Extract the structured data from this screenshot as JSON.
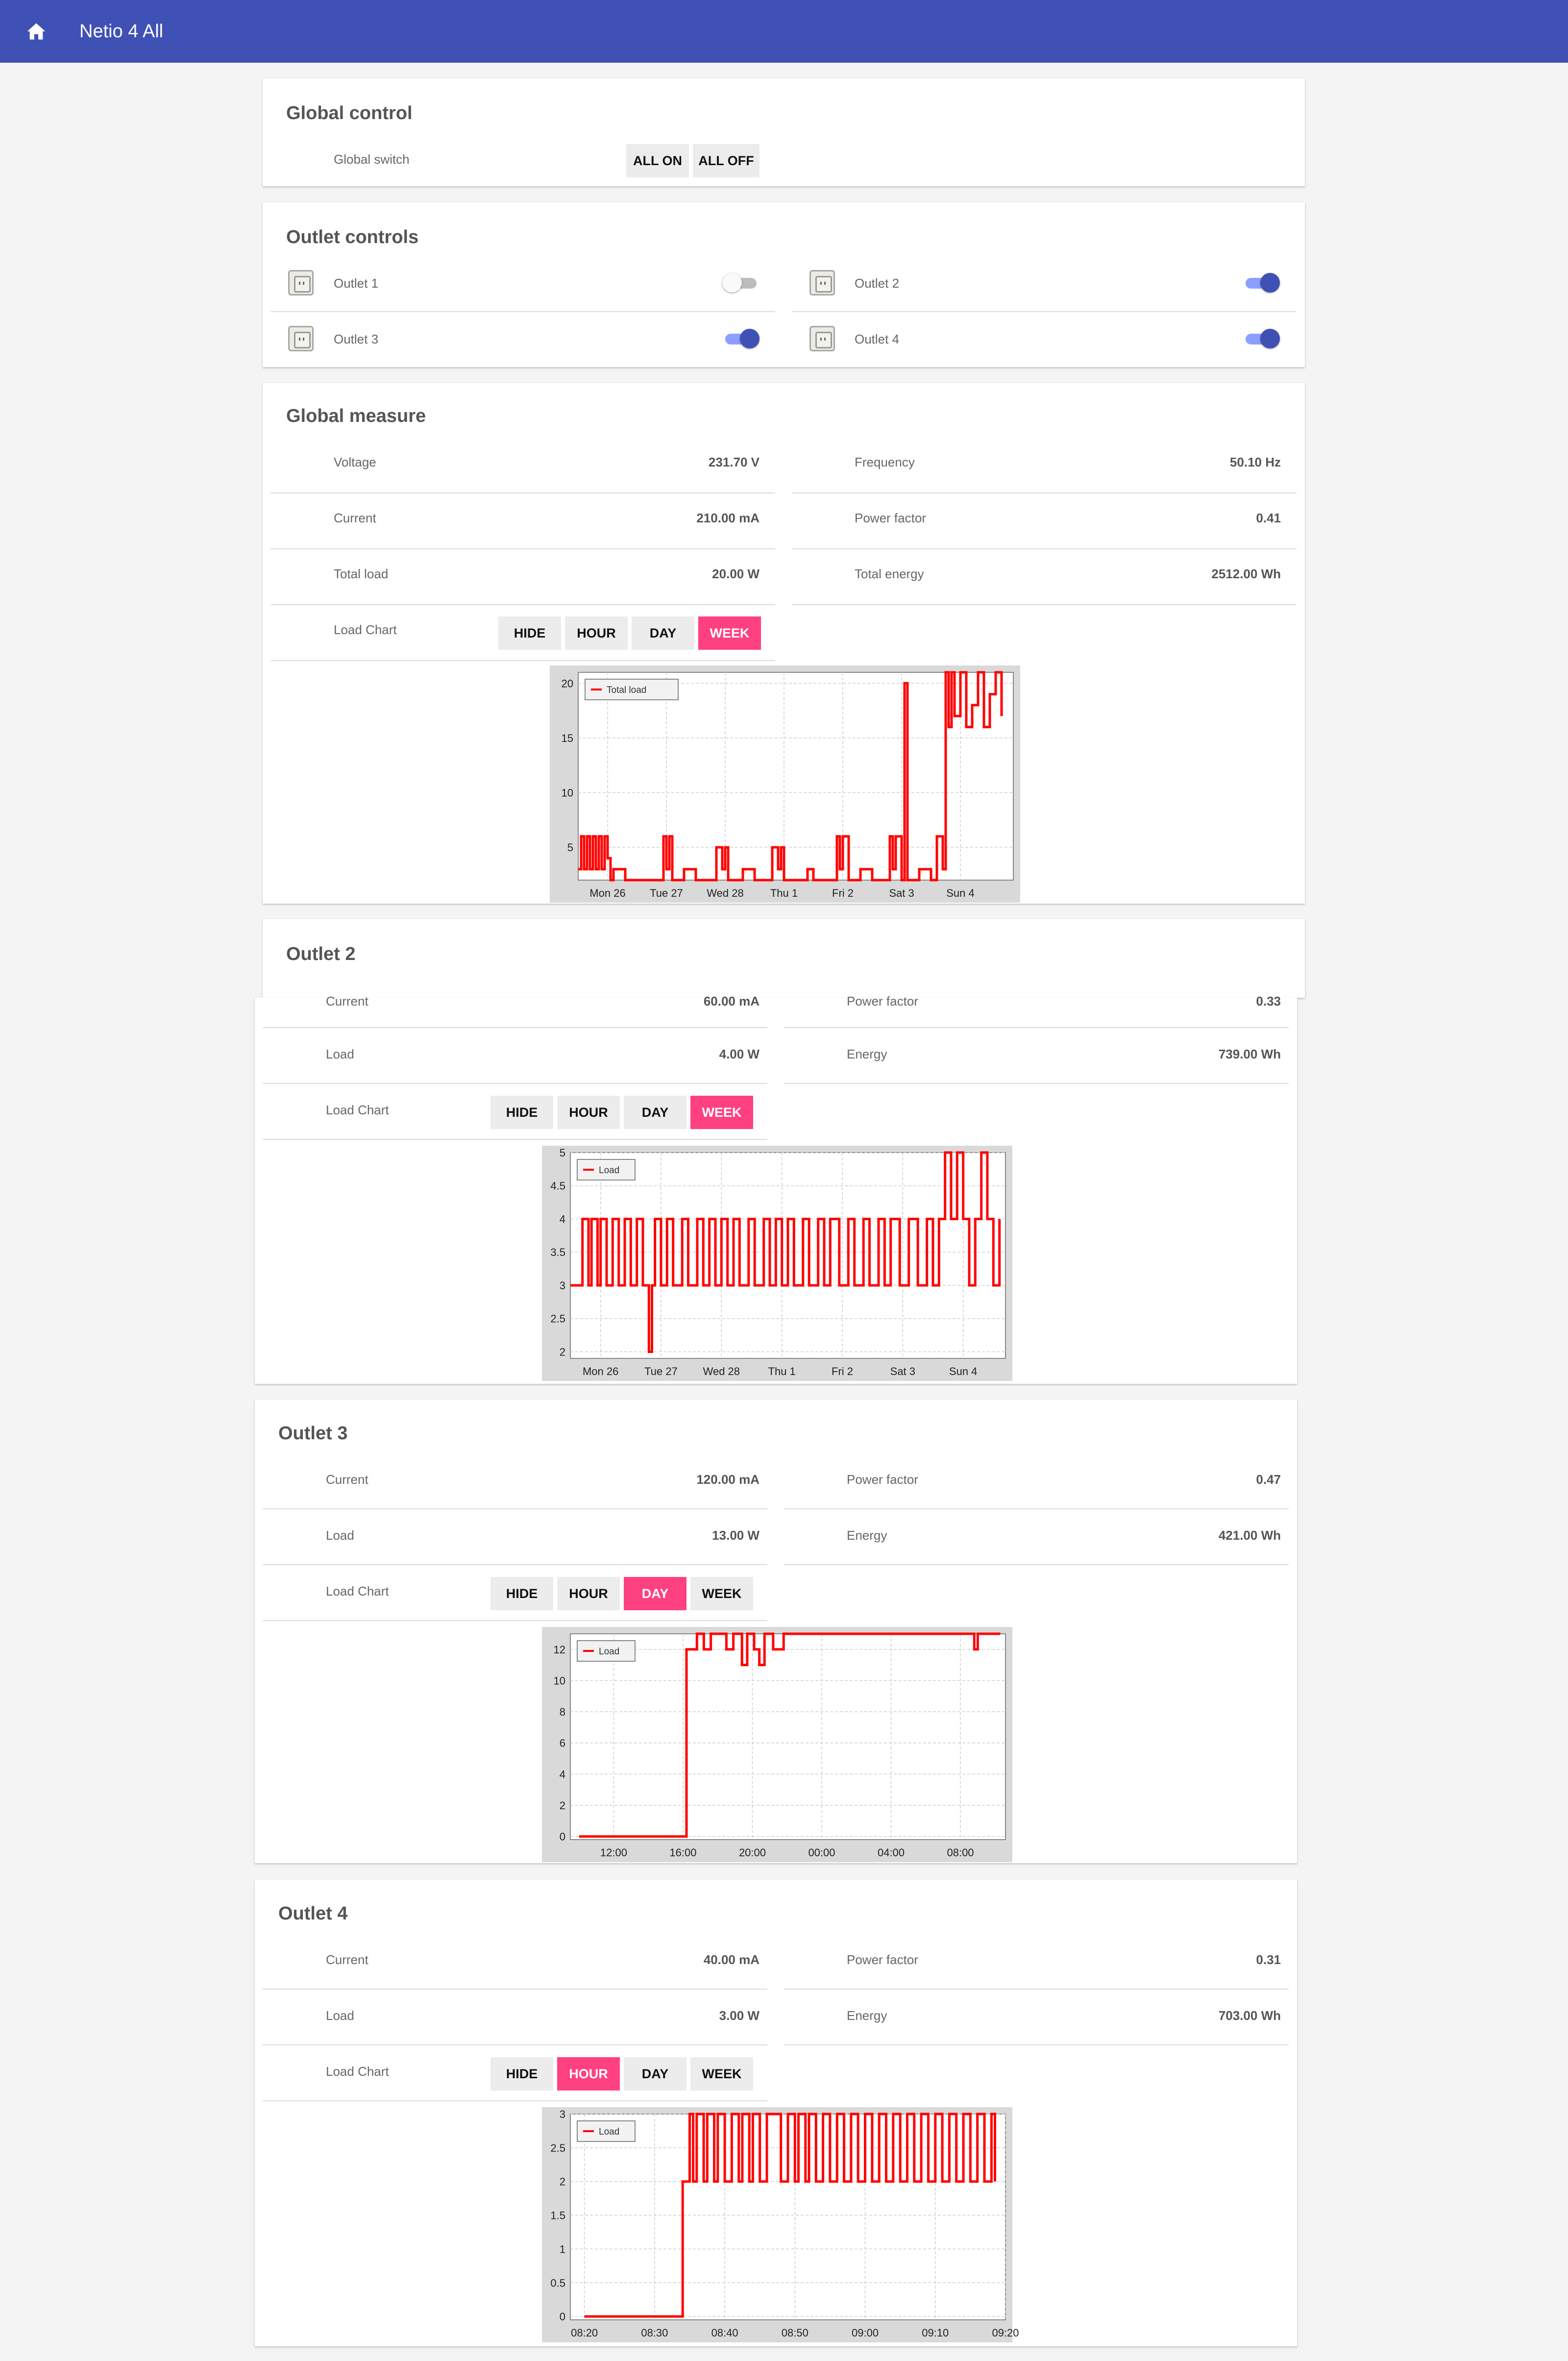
{
  "app": {
    "title": "Netio 4 All",
    "home_icon": "home-icon"
  },
  "global_control": {
    "title": "Global control",
    "switch_label": "Global switch",
    "all_on": "ALL ON",
    "all_off": "ALL OFF"
  },
  "outlet_controls": {
    "title": "Outlet controls",
    "outlets": [
      {
        "name": "Outlet 1",
        "on": false
      },
      {
        "name": "Outlet 2",
        "on": true
      },
      {
        "name": "Outlet 3",
        "on": true
      },
      {
        "name": "Outlet 4",
        "on": true
      }
    ]
  },
  "global_measure": {
    "title": "Global measure",
    "rows": [
      {
        "label": "Voltage",
        "value": "231.70 V"
      },
      {
        "label": "Frequency",
        "value": "50.10 Hz"
      },
      {
        "label": "Current",
        "value": "210.00 mA"
      },
      {
        "label": "Power factor",
        "value": "0.41"
      },
      {
        "label": "Total load",
        "value": "20.00 W"
      },
      {
        "label": "Total energy",
        "value": "2512.00 Wh"
      }
    ],
    "load_chart_label": "Load Chart",
    "buttons": [
      "HIDE",
      "HOUR",
      "DAY",
      "WEEK"
    ],
    "active_button": "WEEK"
  },
  "outlet2": {
    "title": "Outlet 2",
    "rows": [
      {
        "label": "Current",
        "value": "60.00 mA"
      },
      {
        "label": "Power factor",
        "value": "0.33"
      },
      {
        "label": "Load",
        "value": "4.00 W"
      },
      {
        "label": "Energy",
        "value": "739.00 Wh"
      }
    ],
    "load_chart_label": "Load Chart",
    "buttons": [
      "HIDE",
      "HOUR",
      "DAY",
      "WEEK"
    ],
    "active_button": "WEEK"
  },
  "outlet3": {
    "title": "Outlet 3",
    "rows": [
      {
        "label": "Current",
        "value": "120.00 mA"
      },
      {
        "label": "Power factor",
        "value": "0.47"
      },
      {
        "label": "Load",
        "value": "13.00 W"
      },
      {
        "label": "Energy",
        "value": "421.00 Wh"
      }
    ],
    "load_chart_label": "Load Chart",
    "buttons": [
      "HIDE",
      "HOUR",
      "DAY",
      "WEEK"
    ],
    "active_button": "DAY"
  },
  "outlet4": {
    "title": "Outlet 4",
    "rows": [
      {
        "label": "Current",
        "value": "40.00 mA"
      },
      {
        "label": "Power factor",
        "value": "0.31"
      },
      {
        "label": "Load",
        "value": "3.00 W"
      },
      {
        "label": "Energy",
        "value": "703.00 Wh"
      }
    ],
    "load_chart_label": "Load Chart",
    "buttons": [
      "HIDE",
      "HOUR",
      "DAY",
      "WEEK"
    ],
    "active_button": "HOUR"
  },
  "colors": {
    "appbar": "#3f51b5",
    "accent": "#ff4081",
    "toggle_on": "#3f51b5",
    "series": "#ff0000"
  },
  "chart_data": [
    {
      "id": "global-week",
      "type": "line",
      "legend": "Total load",
      "x_ticks": [
        "Mon 26",
        "Tue 27",
        "Wed 28",
        "Thu 1",
        "Fri 2",
        "Sat 3",
        "Sun 4"
      ],
      "y_ticks": [
        5,
        10,
        15,
        20
      ],
      "ylim": [
        2,
        21
      ],
      "xlim": [
        0,
        7.4
      ],
      "grid": true,
      "legend_position": "top-left",
      "series": [
        {
          "values": [
            [
              0,
              3
            ],
            [
              0.05,
              6
            ],
            [
              0.1,
              3
            ],
            [
              0.15,
              6
            ],
            [
              0.2,
              3
            ],
            [
              0.25,
              6
            ],
            [
              0.3,
              3
            ],
            [
              0.35,
              6
            ],
            [
              0.4,
              3
            ],
            [
              0.45,
              6
            ],
            [
              0.5,
              4
            ],
            [
              0.55,
              2
            ],
            [
              0.6,
              3
            ],
            [
              0.8,
              2
            ],
            [
              1.2,
              2
            ],
            [
              1.4,
              2
            ],
            [
              1.45,
              6
            ],
            [
              1.5,
              3
            ],
            [
              1.55,
              6
            ],
            [
              1.6,
              2
            ],
            [
              1.8,
              3
            ],
            [
              2.0,
              2
            ],
            [
              2.3,
              2
            ],
            [
              2.35,
              5
            ],
            [
              2.45,
              3
            ],
            [
              2.5,
              5
            ],
            [
              2.55,
              2
            ],
            [
              2.8,
              3
            ],
            [
              3.0,
              2
            ],
            [
              3.2,
              2
            ],
            [
              3.3,
              5
            ],
            [
              3.4,
              3
            ],
            [
              3.45,
              5
            ],
            [
              3.5,
              2
            ],
            [
              3.9,
              3
            ],
            [
              4.0,
              2
            ],
            [
              4.3,
              2
            ],
            [
              4.4,
              6
            ],
            [
              4.45,
              3
            ],
            [
              4.5,
              6
            ],
            [
              4.6,
              2
            ],
            [
              4.8,
              3
            ],
            [
              5.0,
              2
            ],
            [
              5.2,
              2
            ],
            [
              5.3,
              6
            ],
            [
              5.35,
              3
            ],
            [
              5.4,
              6
            ],
            [
              5.5,
              2
            ],
            [
              5.55,
              20
            ],
            [
              5.6,
              2
            ],
            [
              5.8,
              3
            ],
            [
              6.0,
              2
            ],
            [
              6.1,
              6
            ],
            [
              6.2,
              3
            ],
            [
              6.25,
              21
            ],
            [
              6.3,
              16
            ],
            [
              6.35,
              21
            ],
            [
              6.4,
              17
            ],
            [
              6.5,
              21
            ],
            [
              6.6,
              16
            ],
            [
              6.7,
              18
            ],
            [
              6.8,
              21
            ],
            [
              6.9,
              16
            ],
            [
              7.0,
              19
            ],
            [
              7.1,
              21
            ],
            [
              7.2,
              17
            ]
          ]
        }
      ]
    },
    {
      "id": "outlet2-week",
      "type": "line",
      "legend": "Load",
      "x_ticks": [
        "Mon 26",
        "Tue 27",
        "Wed 28",
        "Thu 1",
        "Fri 2",
        "Sat 3",
        "Sun 4"
      ],
      "y_ticks": [
        2,
        2.5,
        3,
        3.5,
        4,
        4.5,
        5
      ],
      "ylim": [
        1.9,
        5
      ],
      "xlim": [
        0,
        7.2
      ],
      "grid": true,
      "legend_position": "top-left",
      "series": [
        {
          "values": [
            [
              0,
              3
            ],
            [
              0.15,
              3
            ],
            [
              0.2,
              4
            ],
            [
              0.3,
              3
            ],
            [
              0.35,
              4
            ],
            [
              0.45,
              3
            ],
            [
              0.5,
              4
            ],
            [
              0.6,
              3
            ],
            [
              0.7,
              4
            ],
            [
              0.8,
              3
            ],
            [
              0.9,
              4
            ],
            [
              1.0,
              3
            ],
            [
              1.1,
              4
            ],
            [
              1.2,
              3
            ],
            [
              1.3,
              2
            ],
            [
              1.35,
              3
            ],
            [
              1.4,
              4
            ],
            [
              1.5,
              3
            ],
            [
              1.6,
              4
            ],
            [
              1.7,
              3
            ],
            [
              1.85,
              4
            ],
            [
              1.95,
              3
            ],
            [
              2.1,
              4
            ],
            [
              2.2,
              3
            ],
            [
              2.3,
              4
            ],
            [
              2.4,
              3
            ],
            [
              2.5,
              4
            ],
            [
              2.6,
              3
            ],
            [
              2.7,
              4
            ],
            [
              2.8,
              3
            ],
            [
              2.95,
              4
            ],
            [
              3.05,
              3
            ],
            [
              3.2,
              4
            ],
            [
              3.3,
              3
            ],
            [
              3.4,
              4
            ],
            [
              3.5,
              3
            ],
            [
              3.6,
              4
            ],
            [
              3.7,
              3
            ],
            [
              3.85,
              4
            ],
            [
              3.95,
              3
            ],
            [
              4.1,
              4
            ],
            [
              4.2,
              3
            ],
            [
              4.3,
              4
            ],
            [
              4.45,
              3
            ],
            [
              4.6,
              4
            ],
            [
              4.7,
              3
            ],
            [
              4.85,
              4
            ],
            [
              4.95,
              3
            ],
            [
              5.1,
              4
            ],
            [
              5.2,
              3
            ],
            [
              5.3,
              4
            ],
            [
              5.45,
              3
            ],
            [
              5.6,
              4
            ],
            [
              5.75,
              3
            ],
            [
              5.9,
              4
            ],
            [
              6.0,
              3
            ],
            [
              6.1,
              4
            ],
            [
              6.2,
              5
            ],
            [
              6.3,
              4
            ],
            [
              6.4,
              5
            ],
            [
              6.5,
              4
            ],
            [
              6.6,
              3
            ],
            [
              6.7,
              4
            ],
            [
              6.8,
              5
            ],
            [
              6.9,
              4
            ],
            [
              7.0,
              3
            ],
            [
              7.1,
              4
            ]
          ]
        }
      ]
    },
    {
      "id": "outlet3-day",
      "type": "line",
      "legend": "Load",
      "x_ticks": [
        "12:00",
        "16:00",
        "20:00",
        "00:00",
        "04:00",
        "08:00"
      ],
      "y_ticks": [
        0,
        2,
        4,
        6,
        8,
        10,
        12
      ],
      "ylim": [
        -0.2,
        13
      ],
      "xlim": [
        9.5,
        34.6
      ],
      "grid": true,
      "legend_position": "top-left",
      "series": [
        {
          "values": [
            [
              10,
              0
            ],
            [
              16,
              0
            ],
            [
              16.2,
              12
            ],
            [
              16.8,
              13
            ],
            [
              17.2,
              12
            ],
            [
              17.6,
              13
            ],
            [
              18.5,
              12
            ],
            [
              18.9,
              13
            ],
            [
              19.4,
              11
            ],
            [
              19.7,
              13
            ],
            [
              20.1,
              12
            ],
            [
              20.4,
              11
            ],
            [
              20.7,
              13
            ],
            [
              21.2,
              12
            ],
            [
              21.8,
              13
            ],
            [
              22.5,
              13
            ],
            [
              24,
              13
            ],
            [
              28,
              13
            ],
            [
              31,
              13
            ],
            [
              32.5,
              13
            ],
            [
              32.8,
              12
            ],
            [
              33,
              13
            ],
            [
              34.3,
              13
            ]
          ]
        }
      ]
    },
    {
      "id": "outlet4-hour",
      "type": "line",
      "legend": "Load",
      "x_ticks": [
        "08:20",
        "08:30",
        "08:40",
        "08:50",
        "09:00",
        "09:10",
        "09:20"
      ],
      "y_ticks": [
        0,
        0.5,
        1,
        1.5,
        2,
        2.5,
        3
      ],
      "ylim": [
        -0.05,
        3
      ],
      "xlim": [
        498,
        560
      ],
      "grid": true,
      "legend_position": "top-left",
      "series": [
        {
          "values": [
            [
              500,
              0
            ],
            [
              513.5,
              0
            ],
            [
              514,
              2
            ],
            [
              515,
              3
            ],
            [
              515.5,
              2
            ],
            [
              516,
              3
            ],
            [
              517,
              2
            ],
            [
              517.5,
              3
            ],
            [
              518.5,
              2
            ],
            [
              519,
              3
            ],
            [
              520,
              2
            ],
            [
              521,
              3
            ],
            [
              522,
              2
            ],
            [
              522.5,
              3
            ],
            [
              523.5,
              2
            ],
            [
              524,
              3
            ],
            [
              525,
              2
            ],
            [
              526,
              3
            ],
            [
              527.5,
              3
            ],
            [
              528,
              2
            ],
            [
              529,
              3
            ],
            [
              530,
              2
            ],
            [
              530.5,
              3
            ],
            [
              531.5,
              2
            ],
            [
              532,
              3
            ],
            [
              533,
              2
            ],
            [
              534,
              3
            ],
            [
              535,
              2
            ],
            [
              536,
              3
            ],
            [
              537,
              2
            ],
            [
              538,
              3
            ],
            [
              539,
              2
            ],
            [
              540,
              3
            ],
            [
              541,
              2
            ],
            [
              542,
              3
            ],
            [
              543,
              2
            ],
            [
              544,
              3
            ],
            [
              545,
              2
            ],
            [
              546,
              3
            ],
            [
              547,
              2
            ],
            [
              548,
              3
            ],
            [
              549,
              2
            ],
            [
              550,
              3
            ],
            [
              551,
              2
            ],
            [
              552,
              3
            ],
            [
              553,
              2
            ],
            [
              554,
              3
            ],
            [
              555,
              2
            ],
            [
              556,
              3
            ],
            [
              557,
              2
            ],
            [
              558,
              3
            ],
            [
              558.5,
              2
            ]
          ]
        }
      ]
    }
  ]
}
